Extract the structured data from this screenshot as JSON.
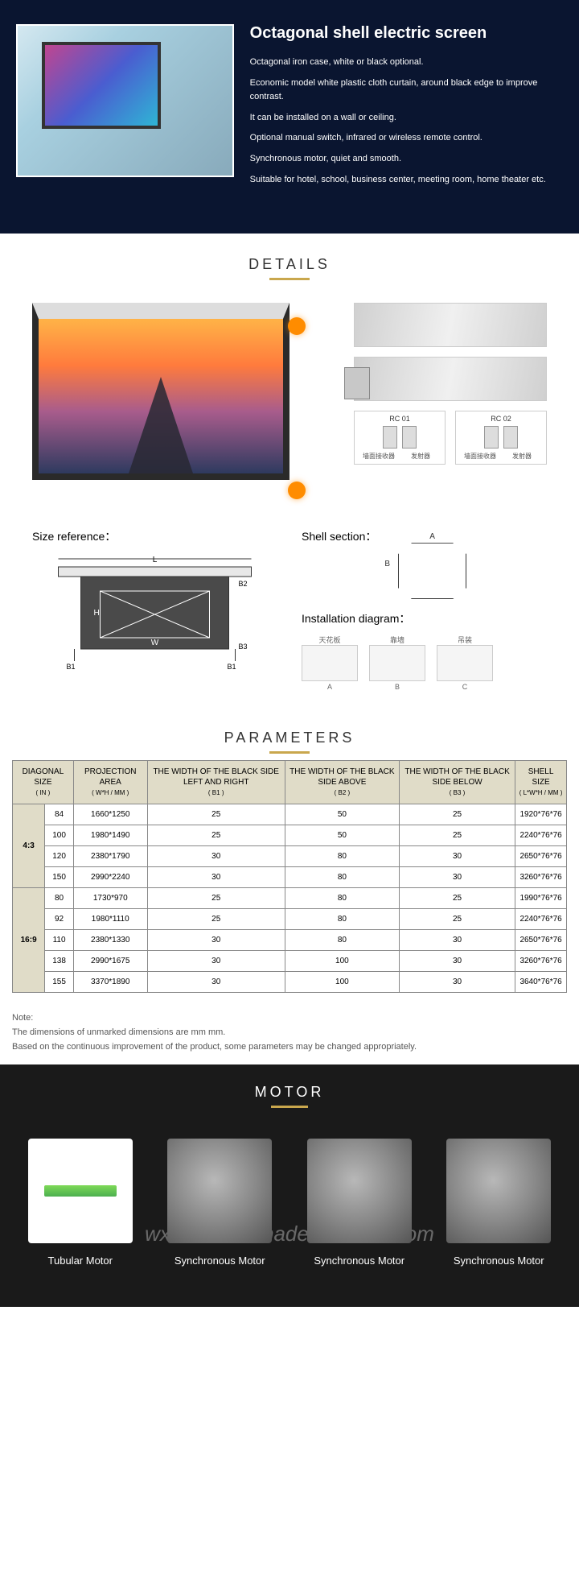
{
  "hero": {
    "title": "Octagonal shell electric screen",
    "lines": [
      "Octagonal iron case, white or black optional.",
      "Economic model white plastic cloth curtain, around black edge to improve contrast.",
      "It can be installed on a wall or ceiling.",
      "Optional manual switch, infrared or wireless remote control.",
      "Synchronous motor, quiet and smooth.",
      "Suitable for hotel, school, business center, meeting room, home theater etc."
    ]
  },
  "section_details": "DETAILS",
  "rc": {
    "rc01": {
      "title": "RC 01",
      "labels": [
        "墙面接收器",
        "发射器"
      ]
    },
    "rc02": {
      "title": "RC 02",
      "labels": [
        "墙面接收器",
        "发射器"
      ]
    }
  },
  "reference": {
    "size_title": "Size reference：",
    "shell_title": "Shell section：",
    "install_title": "Installation diagram：",
    "dims": {
      "L": "L",
      "H": "H",
      "W": "W",
      "B1": "B1",
      "B2": "B2",
      "B3": "B3",
      "A": "A",
      "B": "B"
    },
    "install_labels": {
      "top": [
        "天花板",
        "靠墙",
        "吊装"
      ],
      "bottom": [
        "A",
        "B",
        "C"
      ]
    }
  },
  "section_params": "PARAMETERS",
  "table": {
    "headers": [
      {
        "t": "DIAGONAL SIZE",
        "s": "( IN )"
      },
      {
        "t": "PROJECTION AREA",
        "s": "( W*H / MM )"
      },
      {
        "t": "THE WIDTH OF THE BLACK SIDE LEFT AND RIGHT",
        "s": "( B1 )"
      },
      {
        "t": "THE WIDTH OF THE BLACK SIDE ABOVE",
        "s": "( B2 )"
      },
      {
        "t": "THE WIDTH OF THE BLACK SIDE BELOW",
        "s": "( B3 )"
      },
      {
        "t": "SHELL SIZE",
        "s": "( L*W*H / MM )"
      }
    ],
    "groups": [
      {
        "ratio": "4:3",
        "rows": [
          [
            "84",
            "1660*1250",
            "25",
            "50",
            "25",
            "1920*76*76"
          ],
          [
            "100",
            "1980*1490",
            "25",
            "50",
            "25",
            "2240*76*76"
          ],
          [
            "120",
            "2380*1790",
            "30",
            "80",
            "30",
            "2650*76*76"
          ],
          [
            "150",
            "2990*2240",
            "30",
            "80",
            "30",
            "3260*76*76"
          ]
        ]
      },
      {
        "ratio": "16:9",
        "rows": [
          [
            "80",
            "1730*970",
            "25",
            "80",
            "25",
            "1990*76*76"
          ],
          [
            "92",
            "1980*1110",
            "25",
            "80",
            "25",
            "2240*76*76"
          ],
          [
            "110",
            "2380*1330",
            "30",
            "80",
            "30",
            "2650*76*76"
          ],
          [
            "138",
            "2990*1675",
            "30",
            "100",
            "30",
            "3260*76*76"
          ],
          [
            "155",
            "3370*1890",
            "30",
            "100",
            "30",
            "3640*76*76"
          ]
        ]
      }
    ]
  },
  "notes": {
    "heading": "Note:",
    "lines": [
      "The dimensions of unmarked dimensions are mm mm.",
      "Based on the continuous improvement of the product, some parameters may be changed appropriately."
    ]
  },
  "section_motor": "MOTOR",
  "motors": [
    {
      "label": "Tubular Motor",
      "type": "tubular"
    },
    {
      "label": "Synchronous Motor",
      "type": "sync"
    },
    {
      "label": "Synchronous Motor",
      "type": "sync"
    },
    {
      "label": "Synchronous Motor",
      "type": "sync"
    }
  ],
  "watermark": "wxnumit.en.made-in-china.com",
  "colors": {
    "hero_bg": "#0a1530",
    "accent": "#c9a74d",
    "table_header_bg": "#e0dcc8",
    "motor_bg": "#1a1a1a"
  }
}
